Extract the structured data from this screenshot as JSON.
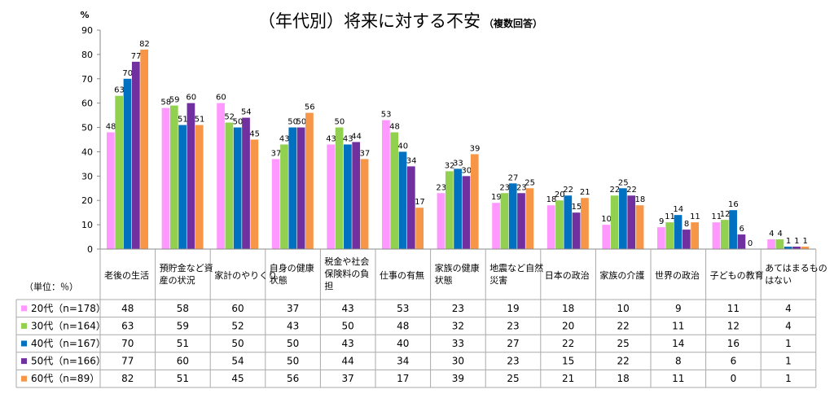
{
  "chart_data": {
    "type": "bar",
    "title": "（年代別）将来に対する不安",
    "subtitle": "（複数回答）",
    "y_unit_label": "%",
    "ylim": [
      0,
      90
    ],
    "ytick_step": 10,
    "grid": false,
    "legend": "data-table",
    "table_unit_label": "（単位：％）",
    "categories": [
      [
        "老後の生活"
      ],
      [
        "預貯金など資",
        "産の状況"
      ],
      [
        "家計のやりくり"
      ],
      [
        "自身の健康",
        "状態"
      ],
      [
        "税金や社会",
        "保険料の負",
        "担"
      ],
      [
        "仕事の有無"
      ],
      [
        "家族の健康",
        "状態"
      ],
      [
        "地震など自然",
        "災害"
      ],
      [
        "日本の政治"
      ],
      [
        "家族の介護"
      ],
      [
        "世界の政治"
      ],
      [
        "子どもの教育"
      ],
      [
        "あてはまるもの",
        "はない"
      ]
    ],
    "series": [
      {
        "name": "20代（n=178）",
        "color": "#ff99ff",
        "values": [
          48,
          58,
          60,
          37,
          43,
          53,
          23,
          19,
          18,
          10,
          9,
          11,
          4
        ]
      },
      {
        "name": "30代（n=164）",
        "color": "#92d050",
        "values": [
          63,
          59,
          52,
          43,
          50,
          48,
          32,
          23,
          20,
          22,
          11,
          12,
          4
        ]
      },
      {
        "name": "40代（n=167）",
        "color": "#0070c0",
        "values": [
          70,
          51,
          50,
          50,
          43,
          40,
          33,
          27,
          22,
          25,
          14,
          16,
          1
        ]
      },
      {
        "name": "50代（n=166）",
        "color": "#7030a0",
        "values": [
          77,
          60,
          54,
          50,
          44,
          34,
          30,
          23,
          15,
          22,
          8,
          6,
          1
        ]
      },
      {
        "name": "60代（n=89）",
        "color": "#f79646",
        "values": [
          82,
          51,
          45,
          56,
          37,
          17,
          39,
          25,
          21,
          18,
          11,
          0,
          1
        ]
      }
    ]
  }
}
